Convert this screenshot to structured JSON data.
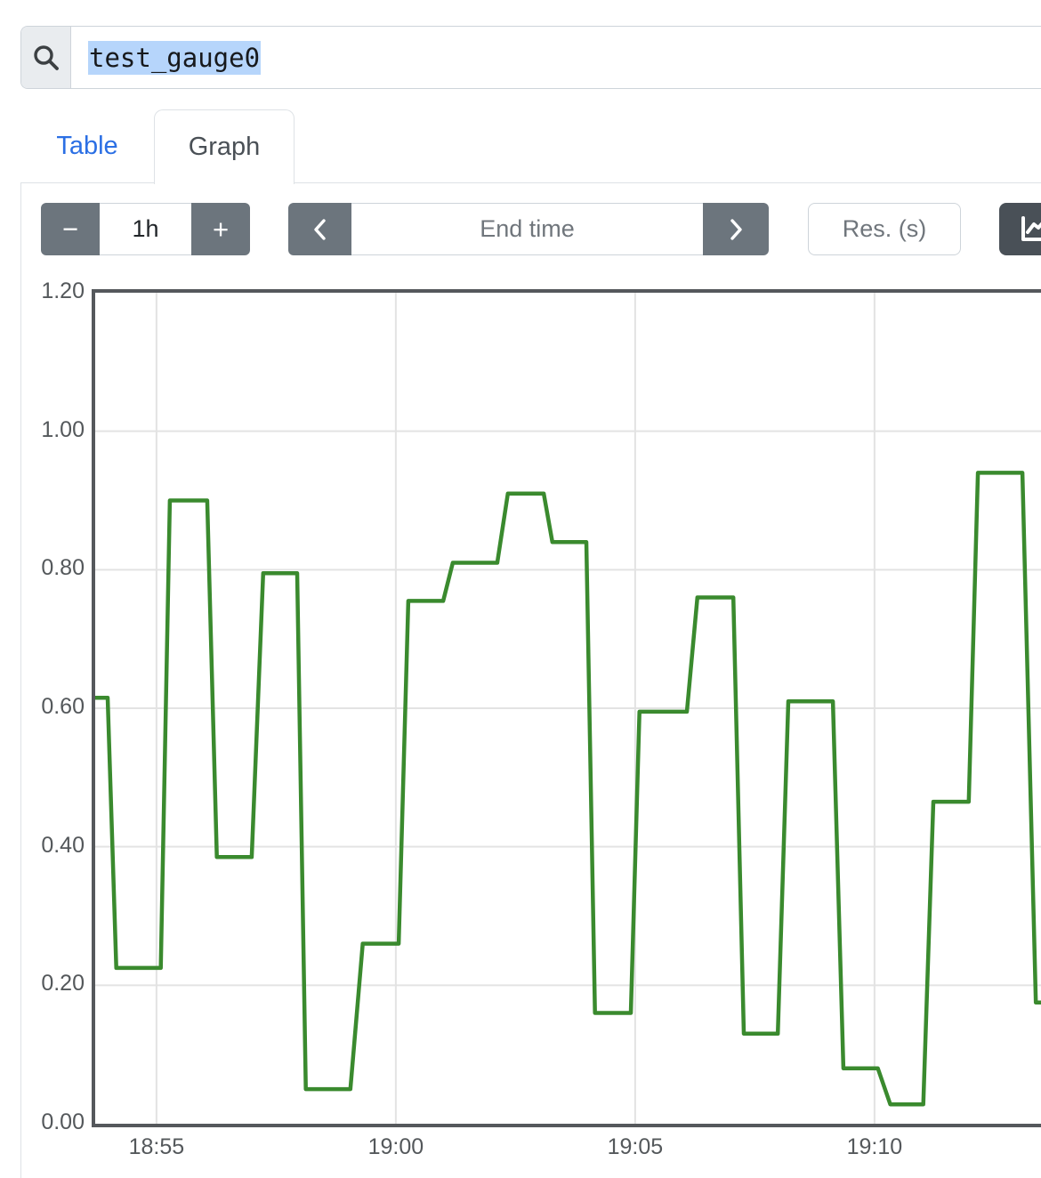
{
  "search": {
    "value": "test_gauge0"
  },
  "tabs": {
    "table_label": "Table",
    "graph_label": "Graph"
  },
  "toolbar": {
    "range_decrease_label": "−",
    "range_value": "1h",
    "range_increase_label": "+",
    "end_time_placeholder": "End time",
    "res_placeholder": "Res. (s)"
  },
  "colors": {
    "accent_blue": "#2b6fe4",
    "button_gray": "#6c757d",
    "button_dark": "#495057",
    "border_light": "#dee2e6",
    "input_border": "#ced4da",
    "chart_border": "#55585c",
    "gridline": "#e3e3e3",
    "series_green": "#3a8a2e",
    "selection_blue": "#b6d5fb"
  },
  "chart_data": {
    "type": "line",
    "title": "",
    "series_name": "test_gauge0",
    "legend_position": "none",
    "grid": true,
    "ylim": [
      0,
      1.2
    ],
    "y_ticks": [
      {
        "label": "0.00",
        "v": 0.0
      },
      {
        "label": "0.20",
        "v": 0.2
      },
      {
        "label": "0.40",
        "v": 0.4
      },
      {
        "label": "0.60",
        "v": 0.6
      },
      {
        "label": "0.80",
        "v": 0.8
      },
      {
        "label": "1.00",
        "v": 1.0
      },
      {
        "label": "1.20",
        "v": 1.2
      }
    ],
    "x_ticks": [
      {
        "label": "18:55",
        "m": 5
      },
      {
        "label": "19:00",
        "m": 10
      },
      {
        "label": "19:05",
        "m": 15
      },
      {
        "label": "19:10",
        "m": 20
      }
    ],
    "x_domain_minutes_after_1850": [
      3.72,
      23.55
    ],
    "points_m_v": [
      [
        3.72,
        0.615
      ],
      [
        3.98,
        0.615
      ],
      [
        4.16,
        0.225
      ],
      [
        5.09,
        0.225
      ],
      [
        5.28,
        0.9
      ],
      [
        6.06,
        0.9
      ],
      [
        6.26,
        0.385
      ],
      [
        6.99,
        0.385
      ],
      [
        7.23,
        0.795
      ],
      [
        7.94,
        0.795
      ],
      [
        8.12,
        0.05
      ],
      [
        9.05,
        0.05
      ],
      [
        9.31,
        0.26
      ],
      [
        10.06,
        0.26
      ],
      [
        10.26,
        0.755
      ],
      [
        10.99,
        0.755
      ],
      [
        11.19,
        0.81
      ],
      [
        12.12,
        0.81
      ],
      [
        12.34,
        0.91
      ],
      [
        13.09,
        0.91
      ],
      [
        13.27,
        0.84
      ],
      [
        13.98,
        0.84
      ],
      [
        14.16,
        0.16
      ],
      [
        14.91,
        0.16
      ],
      [
        15.09,
        0.595
      ],
      [
        16.08,
        0.595
      ],
      [
        16.3,
        0.76
      ],
      [
        17.05,
        0.76
      ],
      [
        17.27,
        0.13
      ],
      [
        17.98,
        0.13
      ],
      [
        18.2,
        0.61
      ],
      [
        19.13,
        0.61
      ],
      [
        19.35,
        0.08
      ],
      [
        20.07,
        0.08
      ],
      [
        20.33,
        0.028
      ],
      [
        21.02,
        0.028
      ],
      [
        21.23,
        0.465
      ],
      [
        21.97,
        0.465
      ],
      [
        22.16,
        0.94
      ],
      [
        23.09,
        0.94
      ],
      [
        23.37,
        0.175
      ],
      [
        23.55,
        0.175
      ]
    ],
    "step_values": [
      0.615,
      0.225,
      0.9,
      0.385,
      0.795,
      0.05,
      0.26,
      0.755,
      0.81,
      0.91,
      0.84,
      0.16,
      0.595,
      0.76,
      0.13,
      0.61,
      0.08,
      0.028,
      0.465,
      0.94,
      0.175
    ]
  }
}
